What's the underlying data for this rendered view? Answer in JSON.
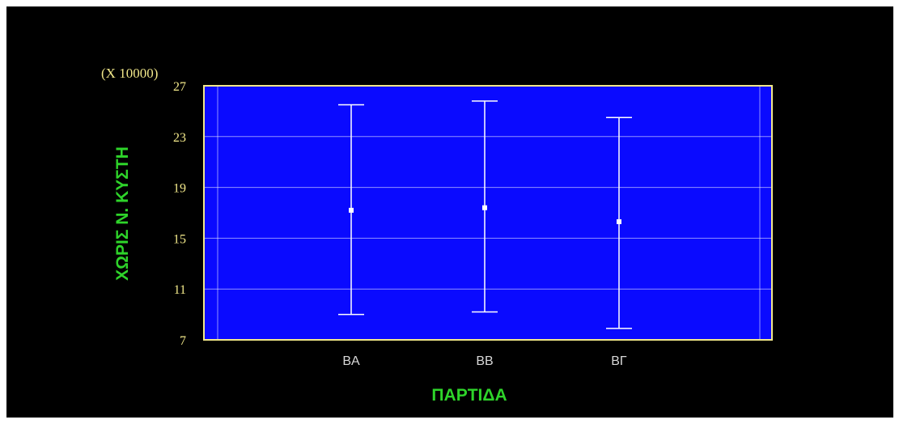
{
  "chart_data": {
    "type": "interval",
    "multiplier_label": "(X 10000)",
    "xlabel": "ΠΑΡΤΙΔΑ",
    "ylabel": "ΧΩΡΙΣ Ν. ΚΥΣΤΗ",
    "categories": [
      "ΒΑ",
      "ΒΒ",
      "ΒΓ"
    ],
    "y_ticks": [
      "7",
      "11",
      "15",
      "19",
      "23",
      "27"
    ],
    "ylim": [
      7,
      27
    ],
    "grid": true,
    "series": [
      {
        "upper": [
          25.5,
          25.8,
          24.5
        ],
        "center": [
          17.2,
          17.4,
          16.3
        ],
        "lower": [
          9.0,
          9.2,
          7.9
        ]
      }
    ],
    "colors": {
      "plot_background": "#0a0aff",
      "grid": "#ffffff",
      "frame": "#f2e88a",
      "intervals": "#ffffff",
      "axis_titles": "#2ed42a"
    }
  }
}
